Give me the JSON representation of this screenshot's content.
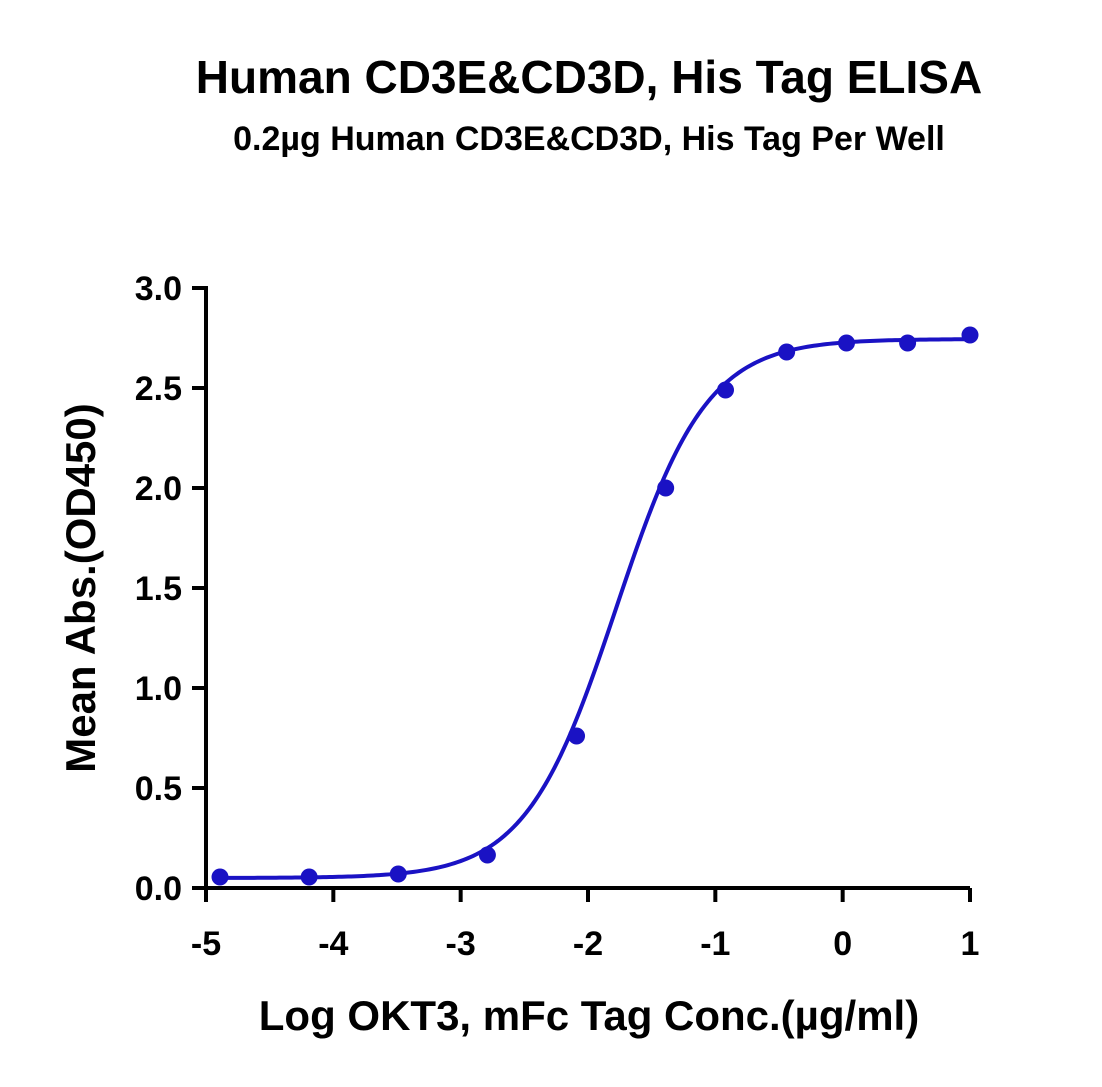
{
  "chart_data": {
    "type": "scatter",
    "title": "Human CD3E&CD3D, His Tag ELISA",
    "subtitle": "0.2µg Human CD3E&CD3D, His Tag Per Well",
    "xlabel": "Log OKT3, mFc Tag Conc.(µg/ml)",
    "ylabel": "Mean Abs.(OD450)",
    "xlim": [
      -5,
      1
    ],
    "ylim": [
      0,
      3
    ],
    "x_ticks": [
      -5,
      -4,
      -3,
      -2,
      -1,
      0,
      1
    ],
    "x_tick_labels": [
      "-5",
      "-4",
      "-3",
      "-2",
      "-1",
      "0",
      "1"
    ],
    "y_ticks": [
      0,
      0.5,
      1,
      1.5,
      2,
      2.5,
      3
    ],
    "y_tick_labels": [
      "0.0",
      "0.5",
      "1.0",
      "1.5",
      "2.0",
      "2.5",
      "3.0"
    ],
    "grid": false,
    "series": [
      {
        "color": "#1a12c4",
        "fit": "sigmoidal 4PL",
        "x": [
          -4.89,
          -4.19,
          -3.49,
          -2.79,
          -2.09,
          -1.39,
          -0.92,
          -0.44,
          0.03,
          0.51,
          1.0
        ],
        "y": [
          0.055,
          0.055,
          0.07,
          0.165,
          0.76,
          2.0,
          2.49,
          2.68,
          2.725,
          2.725,
          2.765
        ]
      }
    ]
  }
}
